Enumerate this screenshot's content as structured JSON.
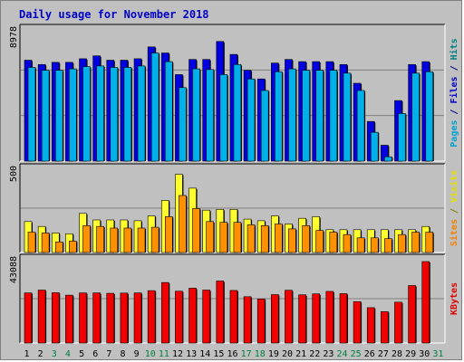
{
  "title": "Daily usage for November 2018",
  "chart_data": [
    {
      "type": "bar",
      "panel": "hits",
      "ylabel_parts": [
        {
          "text": "Pages",
          "color": "#00a0d0"
        },
        {
          "text": " / ",
          "color": "#000080"
        },
        {
          "text": "Files",
          "color": "#0000c8"
        },
        {
          "text": " / ",
          "color": "#000080"
        },
        {
          "text": "Hits",
          "color": "#008080"
        }
      ],
      "ymax_label": "8978",
      "ymax": 8978,
      "categories": [
        "1",
        "2",
        "3",
        "4",
        "5",
        "6",
        "7",
        "8",
        "9",
        "10",
        "11",
        "12",
        "13",
        "14",
        "15",
        "16",
        "17",
        "18",
        "19",
        "20",
        "21",
        "22",
        "23",
        "24",
        "25",
        "26",
        "27",
        "28",
        "29",
        "30",
        "31"
      ],
      "series": [
        {
          "name": "Hits",
          "color": "#0000e0",
          "values": [
            7000,
            6700,
            6850,
            6850,
            7100,
            7300,
            7000,
            7000,
            7100,
            7920,
            7500,
            6000,
            7050,
            7050,
            8300,
            7400,
            6300,
            5700,
            6800,
            7050,
            6900,
            6900,
            6900,
            6700,
            5400,
            2750,
            1100,
            4200,
            6700,
            6900,
            0
          ]
        },
        {
          "name": "Files",
          "color": "#00b0e8",
          "values": [
            6500,
            6300,
            6300,
            6400,
            6550,
            6600,
            6500,
            6500,
            6600,
            7500,
            6900,
            5100,
            6400,
            6350,
            6000,
            6700,
            5700,
            4900,
            6200,
            6400,
            6300,
            6300,
            6300,
            6100,
            4900,
            2000,
            300,
            3300,
            6100,
            6200,
            0
          ]
        }
      ]
    },
    {
      "type": "bar",
      "panel": "visits",
      "ylabel_parts": [
        {
          "text": "Sites",
          "color": "#f08000"
        },
        {
          "text": " / ",
          "color": "#808000"
        },
        {
          "text": "Visits",
          "color": "#e0e000"
        }
      ],
      "ymax_label": "500",
      "ymax": 500,
      "categories": [
        "1",
        "2",
        "3",
        "4",
        "5",
        "6",
        "7",
        "8",
        "9",
        "10",
        "11",
        "12",
        "13",
        "14",
        "15",
        "16",
        "17",
        "18",
        "19",
        "20",
        "21",
        "22",
        "23",
        "24",
        "25",
        "26",
        "27",
        "28",
        "29",
        "30",
        "31"
      ],
      "series": [
        {
          "name": "Visits",
          "color": "#ffff30",
          "values": [
            190,
            160,
            120,
            115,
            240,
            200,
            200,
            200,
            195,
            225,
            320,
            480,
            395,
            260,
            265,
            265,
            205,
            195,
            225,
            175,
            210,
            220,
            140,
            140,
            140,
            140,
            140,
            140,
            140,
            160,
            0
          ]
        },
        {
          "name": "Sites",
          "color": "#ff9000",
          "values": [
            125,
            120,
            65,
            70,
            165,
            160,
            150,
            150,
            150,
            155,
            220,
            350,
            270,
            190,
            185,
            185,
            170,
            165,
            175,
            145,
            165,
            135,
            125,
            110,
            90,
            90,
            85,
            110,
            125,
            125,
            0
          ]
        }
      ]
    },
    {
      "type": "bar",
      "panel": "kbytes",
      "ylabel_parts": [
        {
          "text": "KBytes",
          "color": "#e00000"
        }
      ],
      "ymax_label": "43088",
      "ymax": 43088,
      "categories": [
        "1",
        "2",
        "3",
        "4",
        "5",
        "6",
        "7",
        "8",
        "9",
        "10",
        "11",
        "12",
        "13",
        "14",
        "15",
        "16",
        "17",
        "18",
        "19",
        "20",
        "21",
        "22",
        "23",
        "24",
        "25",
        "26",
        "27",
        "28",
        "29",
        "30",
        "31"
      ],
      "series": [
        {
          "name": "KBytes",
          "color": "#f00000",
          "values": [
            26500,
            28000,
            26600,
            25300,
            26500,
            26500,
            26300,
            26400,
            26500,
            27700,
            32000,
            27400,
            29000,
            28000,
            32800,
            27800,
            24500,
            23300,
            25600,
            27900,
            25500,
            26000,
            27300,
            26100,
            21900,
            18700,
            16600,
            21600,
            30400,
            43088,
            0
          ]
        }
      ]
    }
  ],
  "x_label_colors": [
    "#000000",
    "#000000",
    "#008040",
    "#008040",
    "#000000",
    "#000000",
    "#000000",
    "#000000",
    "#000000",
    "#008040",
    "#008040",
    "#000000",
    "#000000",
    "#000000",
    "#000000",
    "#000000",
    "#008040",
    "#008040",
    "#000000",
    "#000000",
    "#000000",
    "#000000",
    "#000000",
    "#008040",
    "#008040",
    "#000000",
    "#000000",
    "#000000",
    "#000000",
    "#000000",
    "#008040"
  ]
}
